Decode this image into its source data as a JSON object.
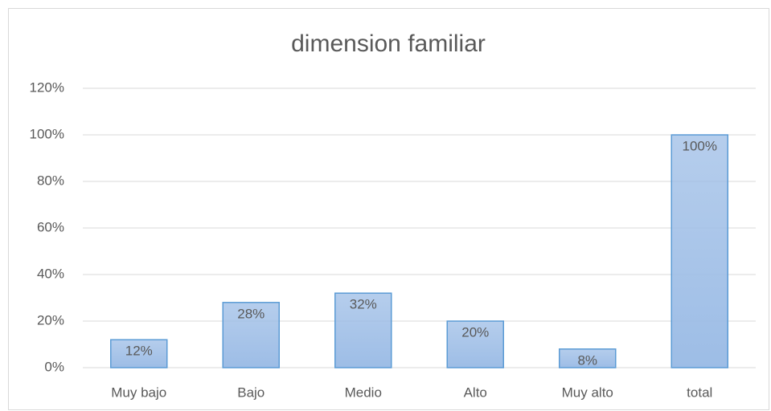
{
  "chart_data": {
    "type": "bar",
    "title": "dimension familiar",
    "categories": [
      "Muy bajo",
      "Bajo",
      "Medio",
      "Alto",
      "Muy alto",
      "total"
    ],
    "values": [
      12,
      28,
      32,
      20,
      8,
      100
    ],
    "value_labels": [
      "12%",
      "28%",
      "32%",
      "20%",
      "8%",
      "100%"
    ],
    "color": "#9dbde6",
    "edge_color": "#5b9bd5",
    "ylim": [
      0,
      120
    ],
    "yticks": [
      {
        "value": 0,
        "label": "0%"
      },
      {
        "value": 20,
        "label": "20%"
      },
      {
        "value": 40,
        "label": "40%"
      },
      {
        "value": 60,
        "label": "60%"
      },
      {
        "value": 80,
        "label": "80%"
      },
      {
        "value": 100,
        "label": "100%"
      },
      {
        "value": 120,
        "label": "120%"
      }
    ],
    "grid": true
  }
}
